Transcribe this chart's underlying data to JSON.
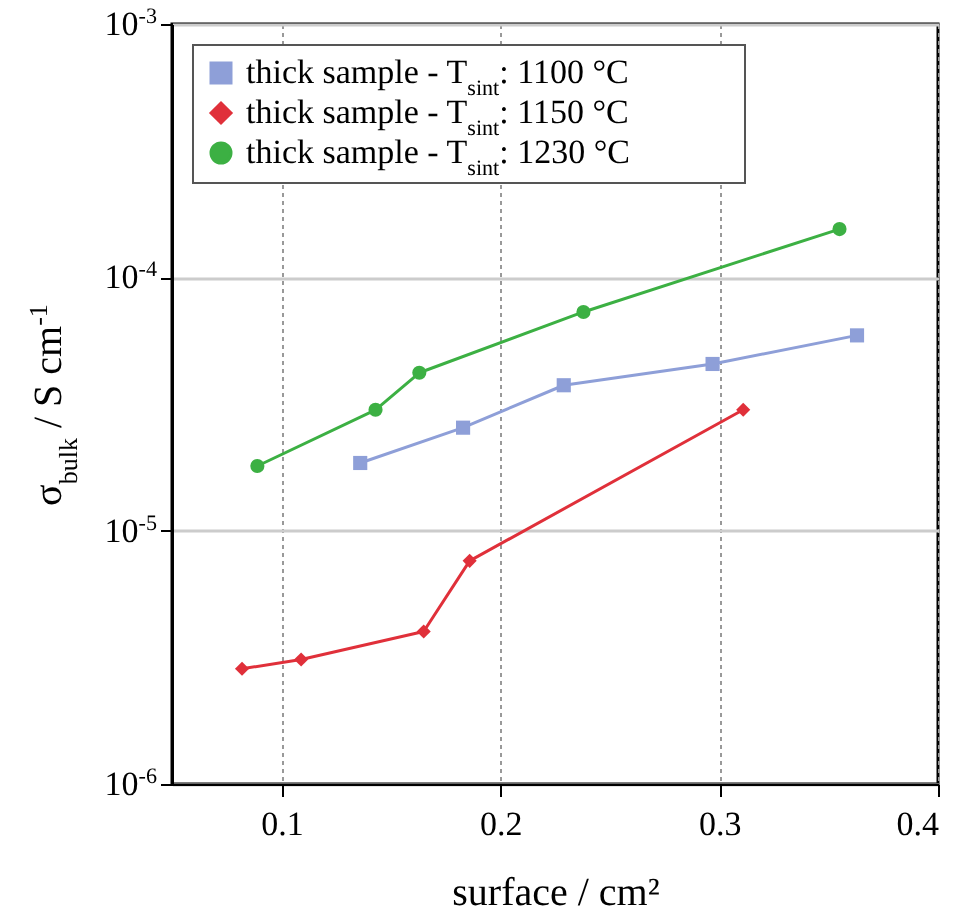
{
  "chart_data": {
    "type": "line",
    "xlabel": "surface / cm²",
    "ylabel": "σ$_{bulk}$ / S cm$^{-1}$",
    "log": "y",
    "grid": true,
    "legend": "top left",
    "xlim": [
      0.05,
      0.4
    ],
    "xticks": [
      0.1,
      0.2,
      0.3,
      0.4
    ],
    "ylim": [
      1e-06,
      0.001
    ],
    "yticks": [
      {
        "value": 1e-06,
        "label": "10$^{-6}$"
      },
      {
        "value": 1e-05,
        "label": "10$^{-5}$"
      },
      {
        "value": 0.0001,
        "label": "10$^{-4}$"
      },
      {
        "value": 0.001,
        "label": "10$^{-3}$"
      }
    ],
    "series": [
      {
        "name": "thick sample - T$_{sint}$: 1100 °C",
        "color": "#8e9fd8",
        "marker": "square",
        "x": [
          0.136,
          0.183,
          0.229,
          0.297,
          0.363
        ],
        "values": [
          1.85e-05,
          2.55e-05,
          3.75e-05,
          4.55e-05,
          5.9e-05
        ]
      },
      {
        "name": "thick sample - T$_{sint}$: 1150 °C",
        "color": "#e0303a",
        "marker": "diamond",
        "x": [
          0.082,
          0.109,
          0.165,
          0.186,
          0.311
        ],
        "values": [
          2.85e-06,
          3.1e-06,
          4e-06,
          7.6e-06,
          3e-05
        ]
      },
      {
        "name": "thick sample - T$_{sint}$: 1230 °C",
        "color": "#3cb043",
        "marker": "circle",
        "x": [
          0.089,
          0.143,
          0.163,
          0.238,
          0.355
        ],
        "values": [
          1.8e-05,
          3e-05,
          4.2e-05,
          7.3e-05,
          0.000155
        ]
      }
    ]
  }
}
